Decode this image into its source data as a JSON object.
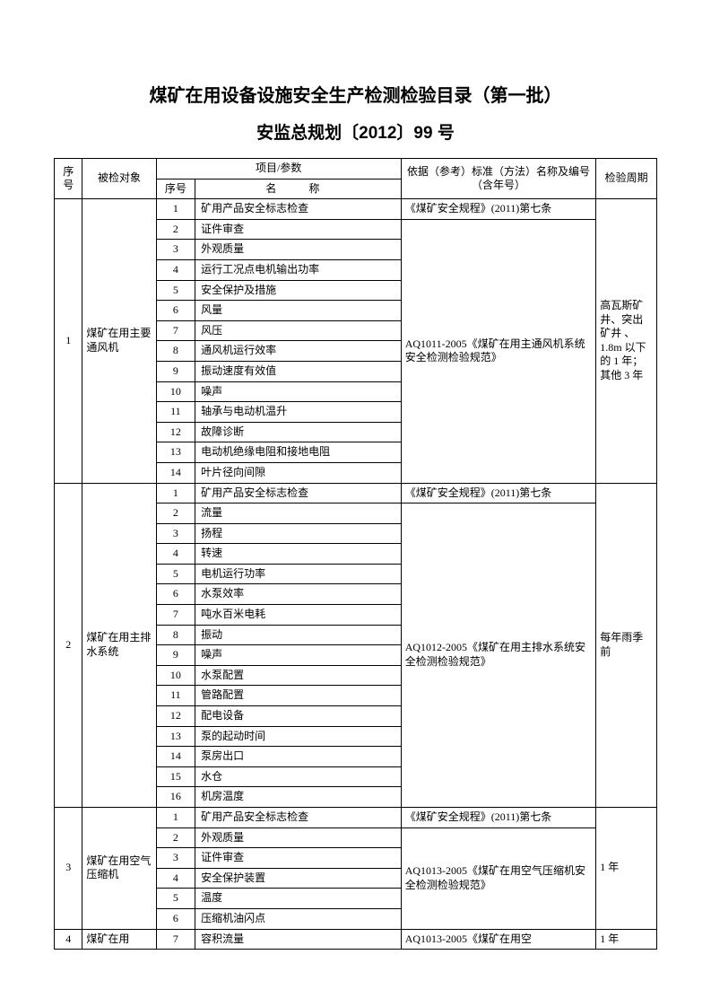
{
  "title": "煤矿在用设备设施安全生产检测检验目录（第一批）",
  "subtitle": "安监总规划〔2012〕99 号",
  "header": {
    "seq": "序号",
    "obj": "被检对象",
    "proj_params": "项目/参数",
    "pnum": "序号",
    "pname": "名　称",
    "std": "依据（参考）标准（方法）名称及编号（含年号）",
    "cycle": "检验周期"
  },
  "groups": [
    {
      "seq": "1",
      "obj": "煤矿在用主要通风机",
      "cycle": "高瓦斯矿井、突出矿井 、1.8m 以下的 1 年；其他 3 年",
      "std_blocks": [
        {
          "rows": 1,
          "text": "《煤矿安全规程》(2011)第七条"
        },
        {
          "rows": 13,
          "text": "AQ1011-2005《煤矿在用主通风机系统安全检测检验规范》"
        }
      ],
      "items": [
        {
          "n": "1",
          "name": "矿用产品安全标志检查"
        },
        {
          "n": "2",
          "name": "证件审查"
        },
        {
          "n": "3",
          "name": "外观质量"
        },
        {
          "n": "4",
          "name": "运行工况点电机输出功率"
        },
        {
          "n": "5",
          "name": "安全保护及措施"
        },
        {
          "n": "6",
          "name": "风量"
        },
        {
          "n": "7",
          "name": "风压"
        },
        {
          "n": "8",
          "name": "通风机运行效率"
        },
        {
          "n": "9",
          "name": "振动速度有效值"
        },
        {
          "n": "10",
          "name": "噪声"
        },
        {
          "n": "11",
          "name": "轴承与电动机温升"
        },
        {
          "n": "12",
          "name": "故障诊断"
        },
        {
          "n": "13",
          "name": "电动机绝缘电阻和接地电阻"
        },
        {
          "n": "14",
          "name": "叶片径向间隙"
        }
      ]
    },
    {
      "seq": "2",
      "obj": "煤矿在用主排水系统",
      "cycle": "每年雨季前",
      "std_blocks": [
        {
          "rows": 1,
          "text": "《煤矿安全规程》(2011)第七条"
        },
        {
          "rows": 15,
          "text": "AQ1012-2005《煤矿在用主排水系统安全检测检验规范》"
        }
      ],
      "items": [
        {
          "n": "1",
          "name": "矿用产品安全标志检查"
        },
        {
          "n": "2",
          "name": "流量"
        },
        {
          "n": "3",
          "name": "扬程"
        },
        {
          "n": "4",
          "name": "转速"
        },
        {
          "n": "5",
          "name": "电机运行功率"
        },
        {
          "n": "6",
          "name": "水泵效率"
        },
        {
          "n": "7",
          "name": "吨水百米电耗"
        },
        {
          "n": "8",
          "name": "振动"
        },
        {
          "n": "9",
          "name": "噪声"
        },
        {
          "n": "10",
          "name": "水泵配置"
        },
        {
          "n": "11",
          "name": "管路配置"
        },
        {
          "n": "12",
          "name": "配电设备"
        },
        {
          "n": "13",
          "name": "泵的起动时间"
        },
        {
          "n": "14",
          "name": "泵房出口"
        },
        {
          "n": "15",
          "name": "水仓"
        },
        {
          "n": "16",
          "name": "机房温度"
        }
      ]
    },
    {
      "seq": "3",
      "obj": "煤矿在用空气压缩机",
      "cycle": "1 年",
      "std_blocks": [
        {
          "rows": 1,
          "text": "《煤矿安全规程》(2011)第七条"
        },
        {
          "rows": 5,
          "text": "AQ1013-2005《煤矿在用空气压缩机安全检测检验规范》"
        }
      ],
      "items": [
        {
          "n": "1",
          "name": "矿用产品安全标志检查"
        },
        {
          "n": "2",
          "name": "外观质量"
        },
        {
          "n": "3",
          "name": "证件审查"
        },
        {
          "n": "4",
          "name": "安全保护装置"
        },
        {
          "n": "5",
          "name": "温度"
        },
        {
          "n": "6",
          "name": "压缩机油闪点"
        }
      ]
    },
    {
      "seq": "4",
      "obj": "煤矿在用",
      "cycle": "1 年",
      "std_blocks": [
        {
          "rows": 1,
          "text": "AQ1013-2005《煤矿在用空"
        }
      ],
      "items": [
        {
          "n": "7",
          "name": "容积流量"
        }
      ]
    }
  ]
}
